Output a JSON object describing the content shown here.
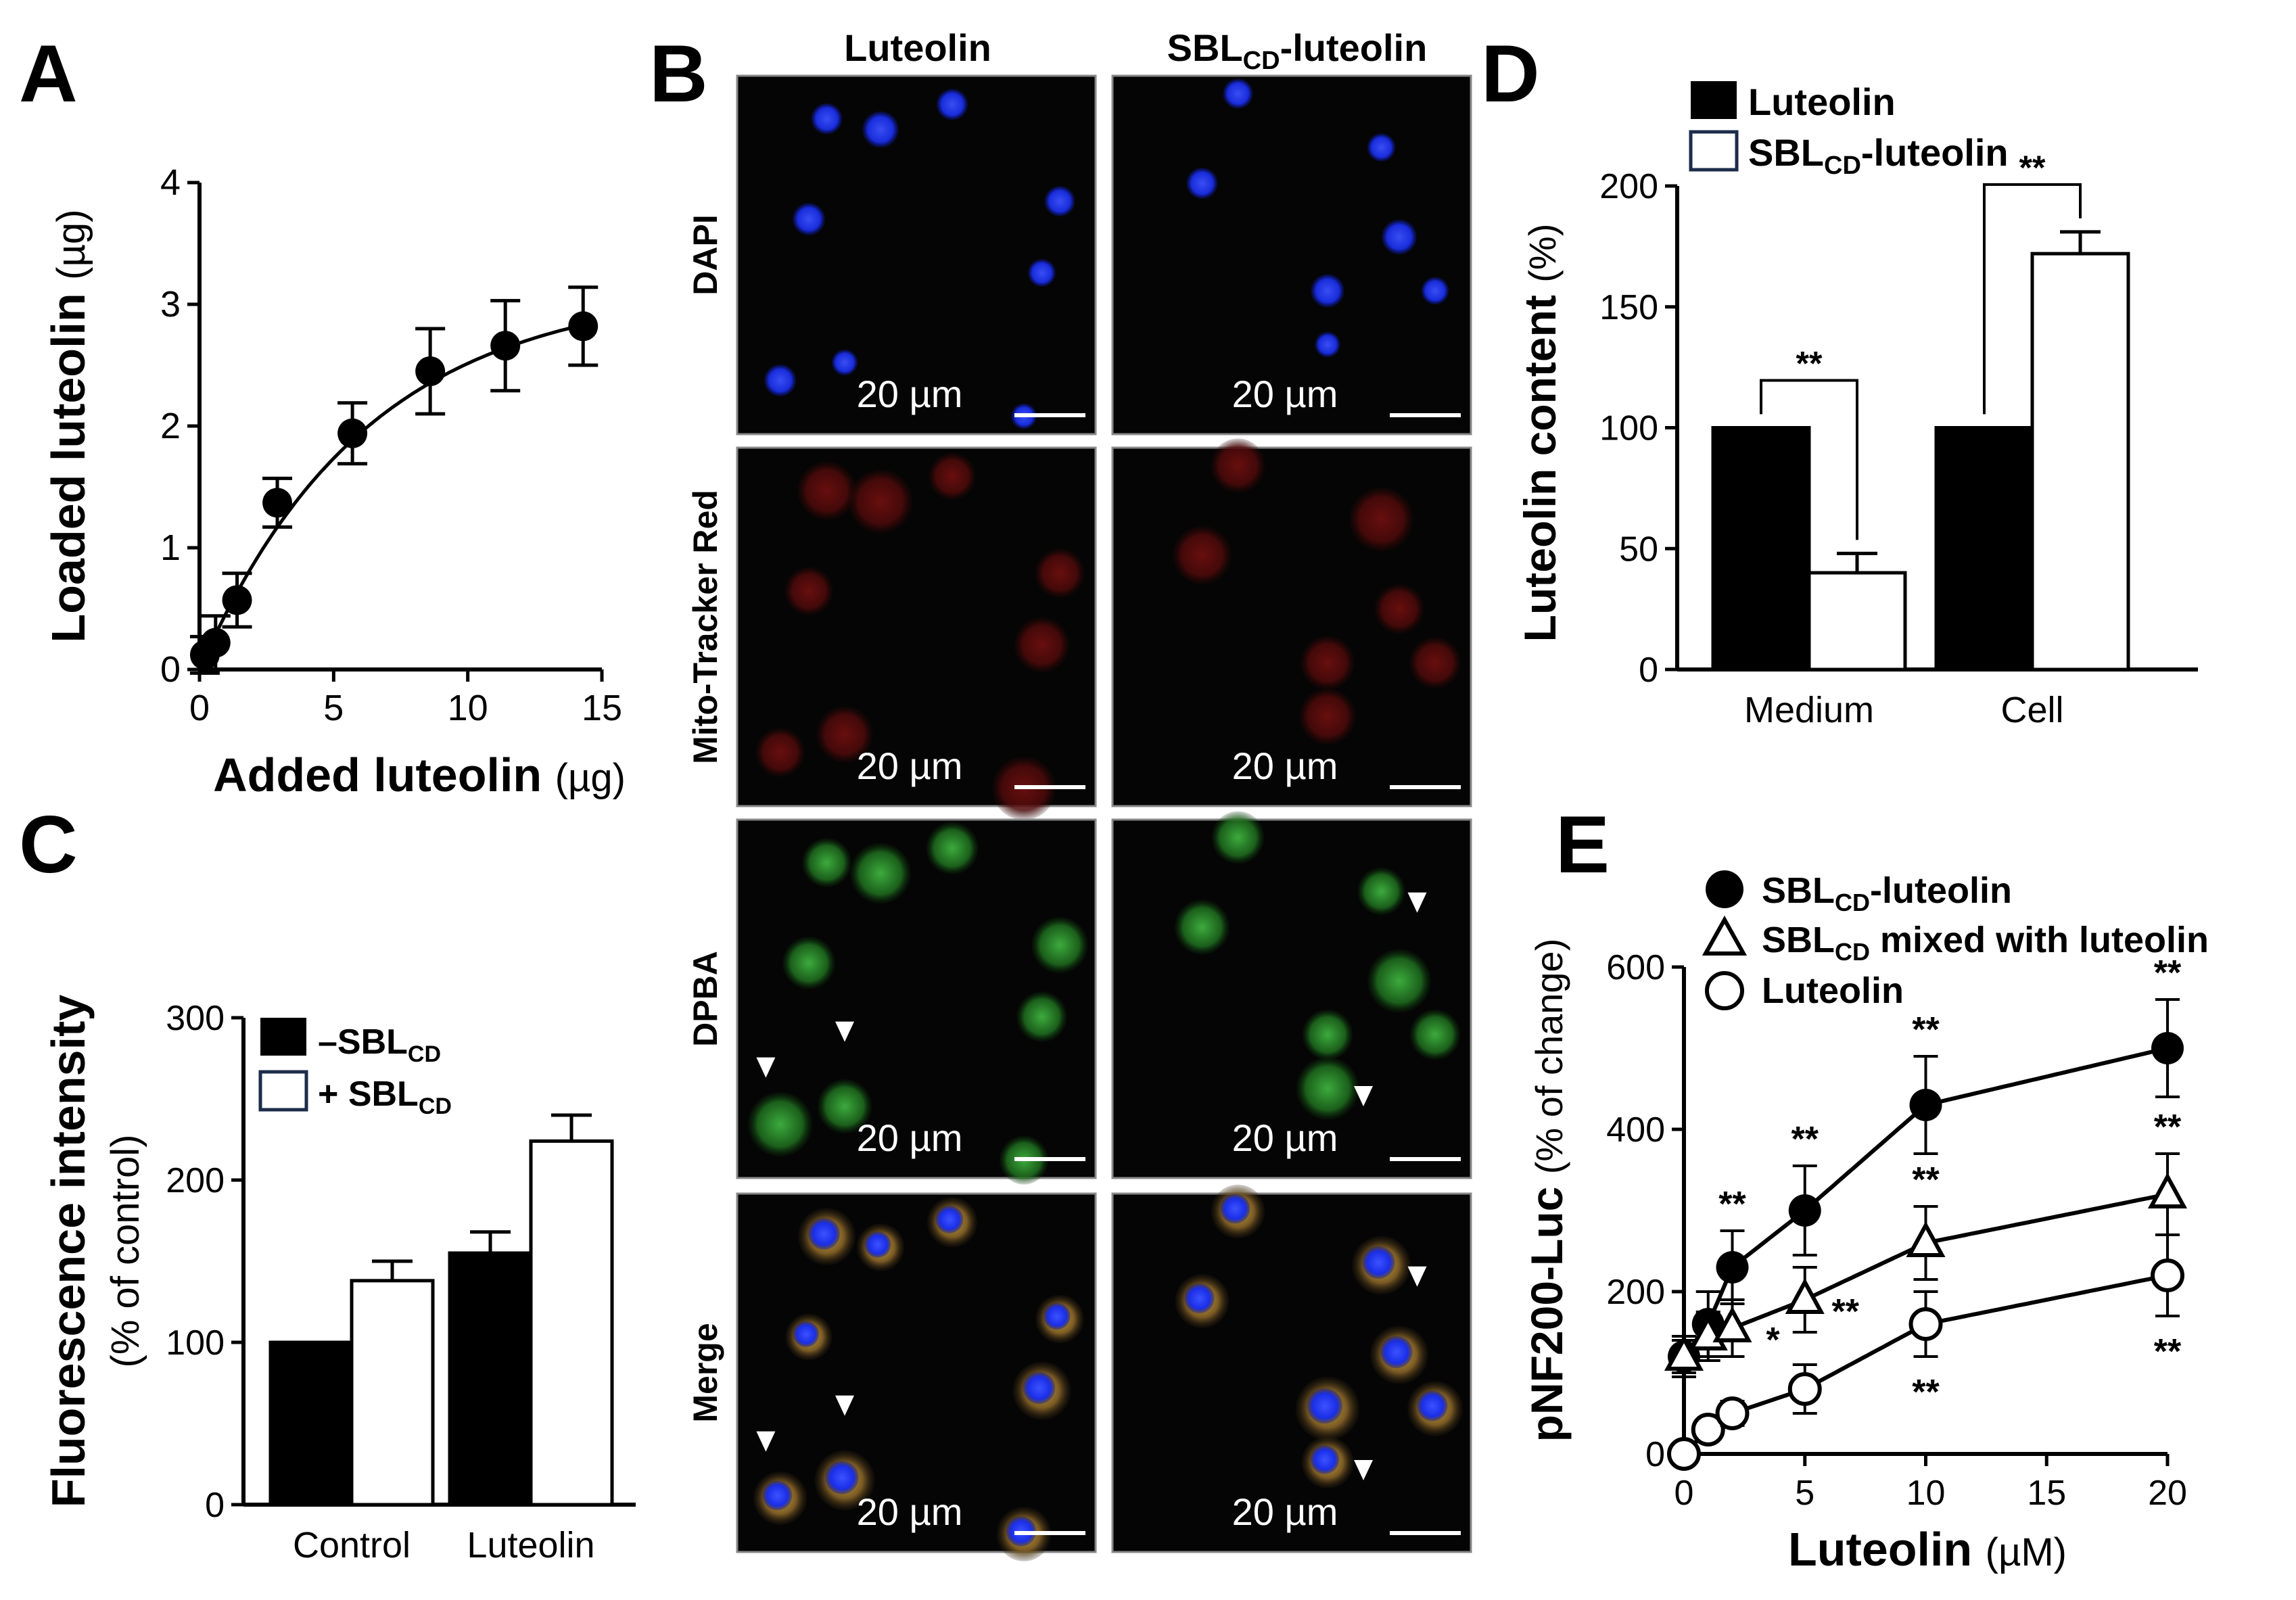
{
  "panel_letters": {
    "A": "A",
    "B": "B",
    "C": "C",
    "D": "D",
    "E": "E"
  },
  "chart_data": [
    {
      "id": "A",
      "type": "scatter",
      "xlabel": "Added luteolin",
      "xunit": "(µg)",
      "ylabel": "Loaded luteolin",
      "yunit": "(µg)",
      "xlim": [
        0,
        15
      ],
      "ylim": [
        0,
        4
      ],
      "xticks": [
        0,
        5,
        10,
        15
      ],
      "yticks": [
        0,
        1,
        2,
        3,
        4
      ],
      "points": [
        {
          "x": 0.2,
          "y": 0.12,
          "err": 0.15
        },
        {
          "x": 0.6,
          "y": 0.22,
          "err": 0.22
        },
        {
          "x": 1.4,
          "y": 0.57,
          "err": 0.22
        },
        {
          "x": 2.9,
          "y": 1.37,
          "err": 0.2
        },
        {
          "x": 5.7,
          "y": 1.94,
          "err": 0.25
        },
        {
          "x": 8.6,
          "y": 2.45,
          "err": 0.35
        },
        {
          "x": 11.4,
          "y": 2.66,
          "err": 0.37
        },
        {
          "x": 14.3,
          "y": 2.82,
          "err": 0.32
        }
      ],
      "fit": {
        "ymax": 3.15,
        "k": 0.16
      }
    },
    {
      "id": "C",
      "type": "bar",
      "ylabel": "Fluorescence intensity",
      "ylabel2": "(% of control)",
      "ylim": [
        0,
        300
      ],
      "yticks": [
        0,
        100,
        200,
        300
      ],
      "categories": [
        "Control",
        "Luteolin"
      ],
      "series": [
        {
          "name": "–SBL",
          "sub": "CD",
          "color": "#000000",
          "values": [
            100,
            155
          ],
          "err": [
            0,
            13
          ]
        },
        {
          "name": "+ SBL",
          "sub": "CD",
          "color": "#ffffff",
          "values": [
            138,
            224
          ],
          "err": [
            12,
            16
          ]
        }
      ]
    },
    {
      "id": "D",
      "type": "bar",
      "ylabel": "Luteolin content",
      "yunit": "(%)",
      "ylim": [
        0,
        200
      ],
      "yticks": [
        0,
        50,
        100,
        150,
        200
      ],
      "categories": [
        "Medium",
        "Cell"
      ],
      "series": [
        {
          "name": "Luteolin",
          "sub": "",
          "color": "#000000",
          "values": [
            100,
            100
          ],
          "err": [
            0,
            0
          ]
        },
        {
          "name": "SBL",
          "sub": "CD",
          "suffix": "-luteolin",
          "color": "#ffffff",
          "values": [
            40,
            172
          ],
          "err": [
            8,
            9
          ]
        }
      ],
      "significance": "**"
    },
    {
      "id": "E",
      "type": "line",
      "xlabel": "Luteolin",
      "xunit": "(µM)",
      "ylabel": "pNF200-Luc",
      "yunit": "(% of change)",
      "xlim": [
        0,
        20
      ],
      "ylim": [
        0,
        600
      ],
      "xticks": [
        0,
        5,
        10,
        15,
        20
      ],
      "yticks": [
        0,
        200,
        400,
        600
      ],
      "x": [
        0,
        1,
        2,
        5,
        10,
        20
      ],
      "series": [
        {
          "name": "SBL",
          "sub": "CD",
          "suffix": "-luteolin",
          "marker": "filled-circle",
          "values": [
            120,
            160,
            230,
            300,
            430,
            500
          ],
          "err": [
            25,
            40,
            45,
            55,
            60,
            60
          ],
          "sig": [
            "",
            "",
            "**",
            "**",
            "**",
            "**"
          ]
        },
        {
          "name": "SBL",
          "sub": "CD",
          "suffix": " mixed with luteolin",
          "marker": "open-triangle",
          "values": [
            120,
            145,
            155,
            190,
            260,
            320
          ],
          "err": [
            20,
            30,
            35,
            40,
            45,
            50
          ],
          "sig": [
            "",
            "",
            "*",
            "**",
            "**",
            "**"
          ]
        },
        {
          "name": "Luteolin",
          "sub": "",
          "suffix": "",
          "marker": "open-circle",
          "values": [
            0,
            30,
            50,
            80,
            160,
            220
          ],
          "err": [
            0,
            10,
            15,
            30,
            40,
            50
          ],
          "sig": [
            "",
            "",
            "",
            "",
            "**",
            "**"
          ]
        }
      ]
    }
  ],
  "microscopy": {
    "columns": [
      {
        "name": "Luteolin",
        "sub": "",
        "suffix": ""
      },
      {
        "name": "SBL",
        "sub": "CD",
        "suffix": "-luteolin"
      }
    ],
    "rows": [
      {
        "label": "DAPI",
        "tint": "#1a2ee6"
      },
      {
        "label": "Mito-Tracker Red",
        "tint": "#c81e1e"
      },
      {
        "label": "DPBA",
        "tint": "#28b428"
      },
      {
        "label": "Merge",
        "tint": "#3a46e0"
      }
    ],
    "scale_bar": "20 µm"
  }
}
